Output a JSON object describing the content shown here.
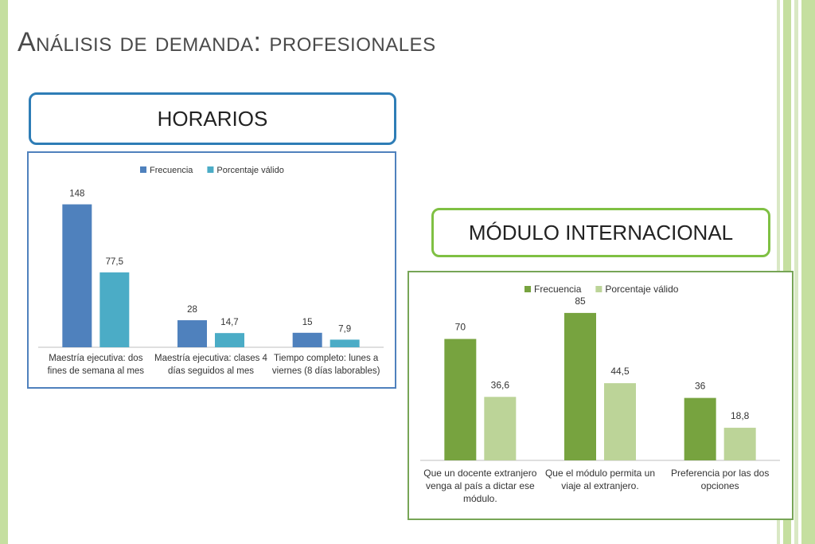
{
  "title": "Análisis de demanda: profesionales",
  "callouts": {
    "horarios": "HORARIOS",
    "modulo": "MÓDULO INTERNACIONAL"
  },
  "colors": {
    "left_bar": "#c5dfa0",
    "blue_border": "#2e7db6",
    "green_border": "#7fc043"
  },
  "chart_data": [
    {
      "type": "bar",
      "title": "",
      "xlabel": "",
      "ylabel": "",
      "legend_position": "top",
      "grid": false,
      "ylim": [
        0,
        160
      ],
      "categories": [
        [
          "Maestría ejecutiva: dos",
          "fines de semana al mes"
        ],
        [
          "Maestría ejecutiva: clases 4",
          "días seguidos al mes"
        ],
        [
          "Tiempo completo: lunes a",
          "viernes (8 días laborables)"
        ]
      ],
      "series": [
        {
          "name": "Frecuencia",
          "color": "#4f81bd",
          "values": [
            148,
            28,
            15
          ],
          "labels": [
            "148",
            "28",
            "15"
          ]
        },
        {
          "name": "Porcentaje válido",
          "color": "#4bacc6",
          "values": [
            77.5,
            14.7,
            7.9
          ],
          "labels": [
            "77,5",
            "14,7",
            "7,9"
          ]
        }
      ]
    },
    {
      "type": "bar",
      "title": "",
      "xlabel": "",
      "ylabel": "",
      "legend_position": "top",
      "grid": false,
      "ylim": [
        0,
        90
      ],
      "categories": [
        [
          "Que un docente extranjero",
          "venga al país a dictar ese",
          "módulo."
        ],
        [
          "Que el módulo permita un",
          "viaje al extranjero."
        ],
        [
          "Preferencia por las dos",
          "opciones"
        ]
      ],
      "series": [
        {
          "name": "Frecuencia",
          "color": "#77a33f",
          "values": [
            70,
            85,
            36
          ],
          "labels": [
            "70",
            "85",
            "36"
          ]
        },
        {
          "name": "Porcentaje válido",
          "color": "#bcd498",
          "values": [
            36.6,
            44.5,
            18.8
          ],
          "labels": [
            "36,6",
            "44,5",
            "18,8"
          ]
        }
      ]
    }
  ]
}
